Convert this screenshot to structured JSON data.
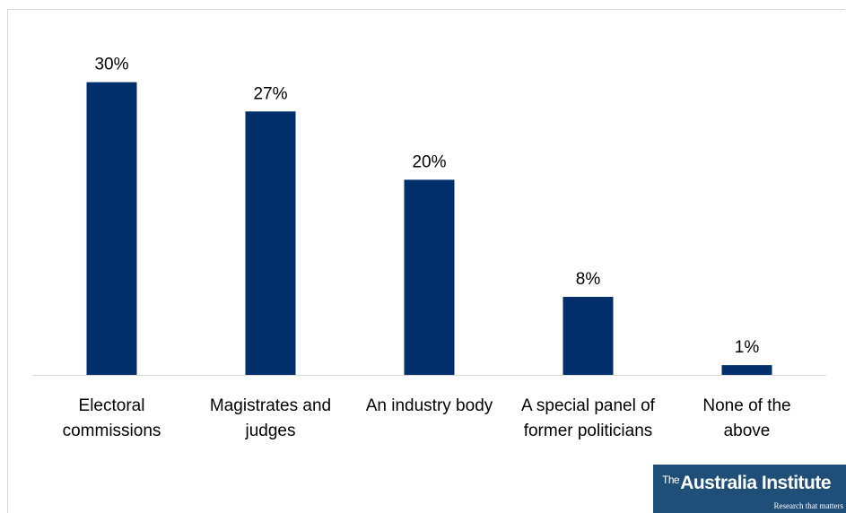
{
  "chart_data": {
    "type": "bar",
    "categories": [
      [
        "Electoral",
        "commissions"
      ],
      [
        "Magistrates and",
        "judges"
      ],
      [
        "An industry body"
      ],
      [
        "A special panel of",
        "former politicians"
      ],
      [
        "None of the",
        "above"
      ]
    ],
    "values": [
      30,
      27,
      20,
      8,
      1
    ],
    "value_labels": [
      "30%",
      "27%",
      "20%",
      "8%",
      "1%"
    ],
    "title": "",
    "xlabel": "",
    "ylabel": "",
    "ylim": [
      0,
      33
    ],
    "grid": false,
    "legend": "none",
    "colors": {
      "bar": "#002f6c",
      "axis": "#d9d9d9",
      "text": "#000000"
    }
  },
  "branding": {
    "logo_prefix": "The",
    "logo_name": "Australia Institute",
    "logo_tagline": "Research that matters"
  }
}
